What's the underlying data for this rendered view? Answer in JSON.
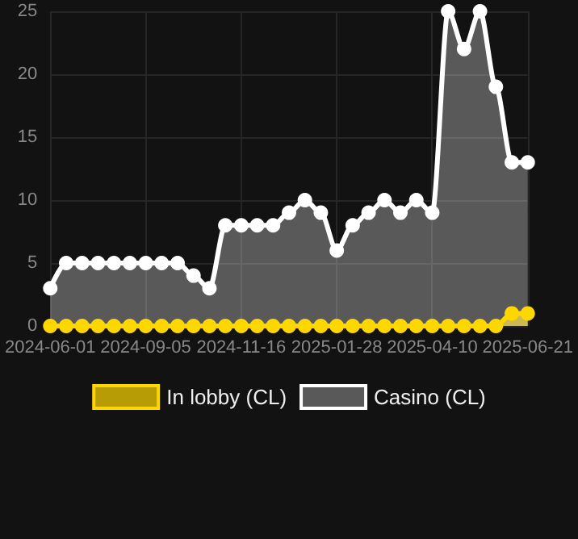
{
  "chart_data": {
    "type": "area",
    "categories": [
      "2024-06-01",
      null,
      null,
      null,
      null,
      null,
      "2024-09-05",
      null,
      null,
      null,
      null,
      null,
      "2024-11-16",
      null,
      null,
      null,
      null,
      null,
      "2025-01-28",
      null,
      null,
      null,
      null,
      null,
      "2025-04-10",
      null,
      null,
      null,
      null,
      null,
      "2025-06-21"
    ],
    "series": [
      {
        "name": "In lobby (CL)",
        "color": "#ffd700",
        "values": [
          0,
          0,
          0,
          0,
          0,
          0,
          0,
          0,
          0,
          0,
          0,
          0,
          0,
          0,
          0,
          0,
          0,
          0,
          0,
          0,
          0,
          0,
          0,
          0,
          0,
          0,
          0,
          0,
          0,
          1,
          1
        ]
      },
      {
        "name": "Casino (CL)",
        "color": "#ffffff",
        "values": [
          3,
          5,
          5,
          5,
          5,
          5,
          5,
          5,
          5,
          4,
          3,
          8,
          8,
          8,
          8,
          9,
          10,
          9,
          6,
          8,
          9,
          10,
          9,
          10,
          9,
          25,
          22,
          25,
          19,
          13,
          13
        ]
      }
    ],
    "ylim": [
      0,
      25
    ],
    "yticks": [
      0,
      5,
      10,
      15,
      20,
      25
    ],
    "grid": true,
    "legend": "bottom",
    "marker": "circle"
  }
}
